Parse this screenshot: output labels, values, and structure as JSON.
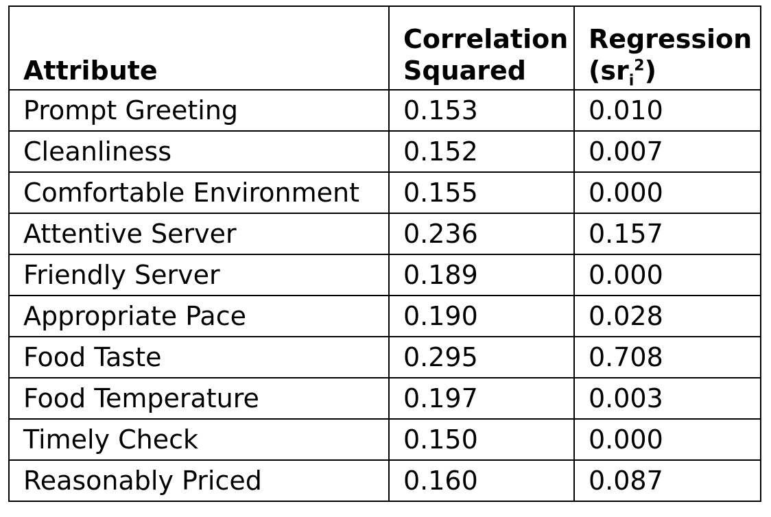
{
  "chart_data": {
    "type": "table",
    "columns": [
      {
        "lines": [
          "Attribute"
        ]
      },
      {
        "lines": [
          "Correlation",
          "Squared"
        ]
      },
      {
        "lines": [
          "Regression",
          "(sr"
        ],
        "sub": "i",
        "sup": "2",
        "close": ")"
      }
    ],
    "rows": [
      {
        "attribute": "Prompt Greeting",
        "correlation_squared": "0.153",
        "regression": "0.010"
      },
      {
        "attribute": "Cleanliness",
        "correlation_squared": "0.152",
        "regression": "0.007"
      },
      {
        "attribute": "Comfortable Environment",
        "correlation_squared": "0.155",
        "regression": "0.000"
      },
      {
        "attribute": "Attentive Server",
        "correlation_squared": "0.236",
        "regression": "0.157"
      },
      {
        "attribute": "Friendly Server",
        "correlation_squared": "0.189",
        "regression": "0.000"
      },
      {
        "attribute": "Appropriate Pace",
        "correlation_squared": "0.190",
        "regression": "0.028"
      },
      {
        "attribute": "Food Taste",
        "correlation_squared": "0.295",
        "regression": "0.708"
      },
      {
        "attribute": "Food Temperature",
        "correlation_squared": "0.197",
        "regression": "0.003"
      },
      {
        "attribute": "Timely Check",
        "correlation_squared": "0.150",
        "regression": "0.000"
      },
      {
        "attribute": "Reasonably Priced",
        "correlation_squared": "0.160",
        "regression": "0.087"
      }
    ]
  }
}
